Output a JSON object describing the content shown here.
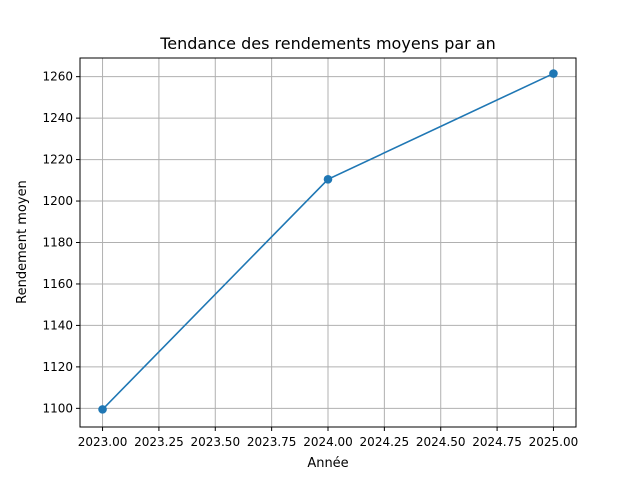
{
  "chart_data": {
    "type": "line",
    "title": "Tendance des rendements moyens par an",
    "xlabel": "Année",
    "ylabel": "Rendement moyen",
    "x": [
      2023.0,
      2024.0,
      2025.0
    ],
    "series": [
      {
        "values": [
          1099.5,
          1210.5,
          1261.5
        ],
        "color": "#1f77b4",
        "marker": "circle"
      }
    ],
    "xlim": [
      2022.9,
      2025.1
    ],
    "ylim": [
      1091,
      1269
    ],
    "x_ticks": [
      2023.0,
      2023.25,
      2023.5,
      2023.75,
      2024.0,
      2024.25,
      2024.5,
      2024.75,
      2025.0
    ],
    "x_tick_labels": [
      "2023.00",
      "2023.25",
      "2023.50",
      "2023.75",
      "2024.00",
      "2024.25",
      "2024.50",
      "2024.75",
      "2025.00"
    ],
    "y_ticks": [
      1100,
      1120,
      1140,
      1160,
      1180,
      1200,
      1220,
      1240,
      1260
    ],
    "y_tick_labels": [
      "1100",
      "1120",
      "1140",
      "1160",
      "1180",
      "1200",
      "1220",
      "1240",
      "1260"
    ],
    "grid": true,
    "legend": "none"
  }
}
